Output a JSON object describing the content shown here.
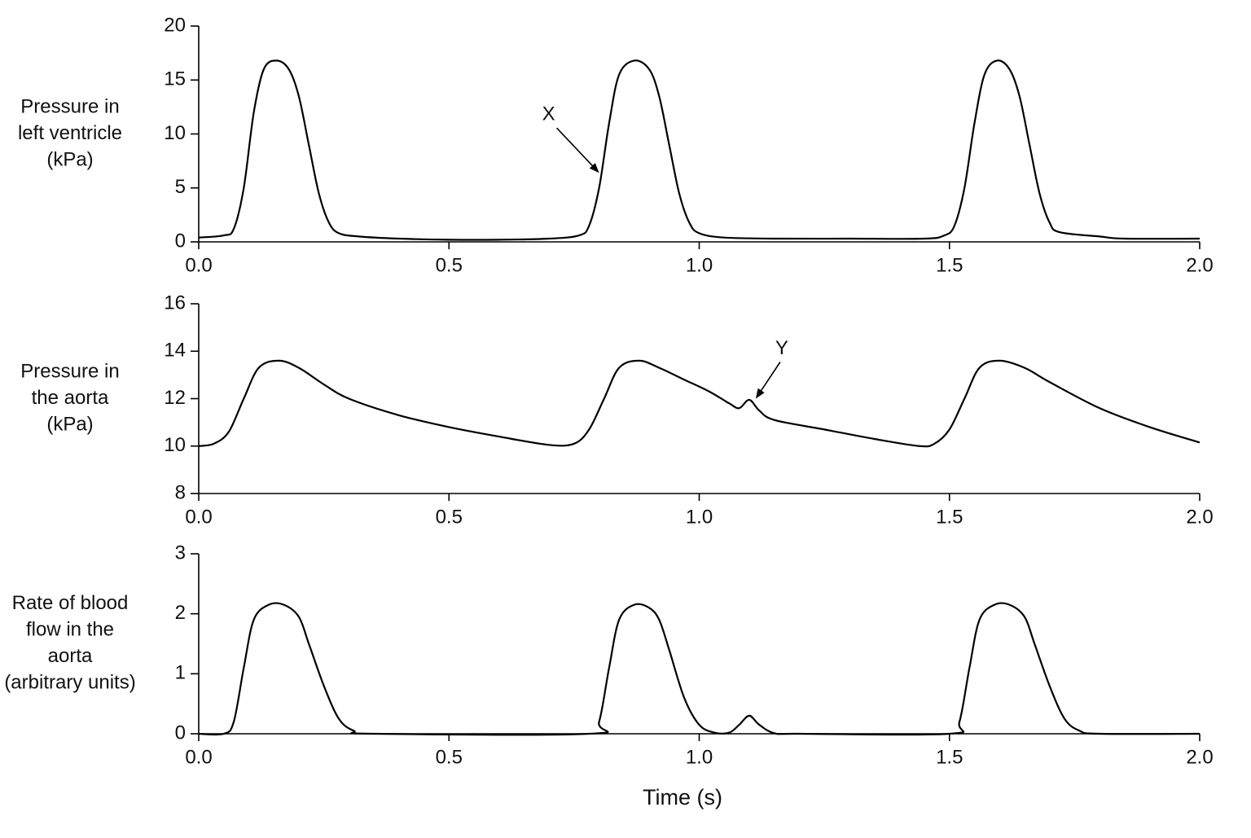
{
  "chart_data": [
    {
      "type": "line",
      "ylabel": [
        "Pressure in",
        "left ventricle",
        "(kPa)"
      ],
      "x": [
        0.0,
        0.05,
        0.07,
        0.09,
        0.11,
        0.13,
        0.155,
        0.18,
        0.2,
        0.22,
        0.24,
        0.26,
        0.28,
        0.32,
        0.4,
        0.5,
        0.6,
        0.7,
        0.76,
        0.78,
        0.8,
        0.82,
        0.84,
        0.87,
        0.9,
        0.92,
        0.94,
        0.96,
        0.98,
        1.0,
        1.05,
        1.15,
        1.3,
        1.45,
        1.49,
        1.51,
        1.53,
        1.55,
        1.57,
        1.595,
        1.62,
        1.64,
        1.66,
        1.68,
        1.7,
        1.72,
        1.8,
        1.85,
        2.0
      ],
      "series": [
        {
          "color": "#000000",
          "values": [
            0.4,
            0.6,
            1.2,
            5,
            12,
            16,
            16.8,
            16,
            13.5,
            9,
            4.5,
            1.8,
            0.8,
            0.5,
            0.3,
            0.2,
            0.2,
            0.3,
            0.6,
            1.5,
            5,
            11,
            15.5,
            16.8,
            16,
            13.5,
            9,
            4.5,
            1.8,
            0.8,
            0.4,
            0.3,
            0.3,
            0.3,
            0.6,
            1.5,
            5,
            11,
            15.5,
            16.8,
            16,
            13.5,
            9,
            4.5,
            1.8,
            0.9,
            0.5,
            0.3,
            0.3
          ]
        }
      ],
      "xlim": [
        0,
        2
      ],
      "ylim": [
        0,
        20
      ],
      "xticks": [
        {
          "value": 0,
          "label": "0.0"
        },
        0.5,
        {
          "value": 1,
          "label": "1.0"
        },
        1.5,
        {
          "value": 2,
          "label": "2.0"
        }
      ],
      "yticks": [
        0,
        5,
        10,
        15,
        20
      ],
      "annotations": [
        {
          "text": "X",
          "x": 0.8,
          "y": 6.4,
          "direction": "upper-left"
        }
      ]
    },
    {
      "type": "line",
      "ylabel": [
        "Pressure in",
        "the aorta",
        "(kPa)"
      ],
      "x": [
        0.0,
        0.03,
        0.06,
        0.09,
        0.12,
        0.16,
        0.2,
        0.25,
        0.3,
        0.4,
        0.5,
        0.6,
        0.7,
        0.75,
        0.78,
        0.81,
        0.84,
        0.88,
        0.92,
        0.97,
        1.02,
        1.06,
        1.08,
        1.1,
        1.12,
        1.15,
        1.25,
        1.35,
        1.44,
        1.47,
        1.5,
        1.53,
        1.56,
        1.6,
        1.65,
        1.7,
        1.8,
        1.9,
        2.0
      ],
      "series": [
        {
          "color": "#000000",
          "values": [
            10.0,
            10.1,
            10.6,
            12.0,
            13.3,
            13.6,
            13.3,
            12.6,
            12.0,
            11.3,
            10.8,
            10.4,
            10.05,
            10.1,
            10.7,
            12.0,
            13.3,
            13.6,
            13.3,
            12.8,
            12.3,
            11.8,
            11.6,
            11.95,
            11.5,
            11.1,
            10.7,
            10.3,
            10.0,
            10.1,
            10.7,
            12.0,
            13.3,
            13.6,
            13.3,
            12.7,
            11.6,
            10.8,
            10.15
          ]
        }
      ],
      "xlim": [
        0,
        2
      ],
      "ylim": [
        8,
        16
      ],
      "xticks": [
        {
          "value": 0,
          "label": "0.0"
        },
        0.5,
        {
          "value": 1,
          "label": "1.0"
        },
        1.5,
        {
          "value": 2,
          "label": "2.0"
        }
      ],
      "yticks": [
        8,
        10,
        12,
        14,
        16
      ],
      "annotations": [
        {
          "text": "Y",
          "x": 1.113,
          "y": 12.0,
          "direction": "upper-right"
        }
      ]
    },
    {
      "type": "line",
      "ylabel": [
        "Rate of blood",
        "flow in the",
        "aorta",
        "(arbitrary units)"
      ],
      "xlabel": "Time (s)",
      "x": [
        0.0,
        0.05,
        0.07,
        0.09,
        0.11,
        0.14,
        0.17,
        0.2,
        0.22,
        0.25,
        0.28,
        0.31,
        0.35,
        0.78,
        0.8,
        0.82,
        0.84,
        0.87,
        0.9,
        0.92,
        0.94,
        0.97,
        1.0,
        1.03,
        1.06,
        1.08,
        1.1,
        1.12,
        1.15,
        1.2,
        1.5,
        1.52,
        1.54,
        1.56,
        1.59,
        1.62,
        1.65,
        1.67,
        1.7,
        1.73,
        1.76,
        1.8,
        2.0
      ],
      "series": [
        {
          "color": "#000000",
          "values": [
            0,
            0,
            0.2,
            1.1,
            1.9,
            2.15,
            2.15,
            1.95,
            1.5,
            0.8,
            0.25,
            0.05,
            0,
            0,
            0.2,
            1.1,
            1.9,
            2.15,
            2.1,
            1.9,
            1.4,
            0.6,
            0.15,
            0.02,
            0.02,
            0.15,
            0.3,
            0.15,
            0.01,
            0,
            0,
            0.2,
            1.1,
            1.9,
            2.15,
            2.15,
            1.95,
            1.5,
            0.8,
            0.25,
            0.05,
            0,
            0
          ]
        }
      ],
      "xlim": [
        0,
        2
      ],
      "ylim": [
        0,
        3
      ],
      "xticks": [
        {
          "value": 0,
          "label": "0.0"
        },
        0.5,
        {
          "value": 1,
          "label": "1.0"
        },
        1.5,
        {
          "value": 2,
          "label": "2.0"
        }
      ],
      "yticks": [
        0,
        1,
        2,
        3
      ],
      "annotations": []
    }
  ]
}
